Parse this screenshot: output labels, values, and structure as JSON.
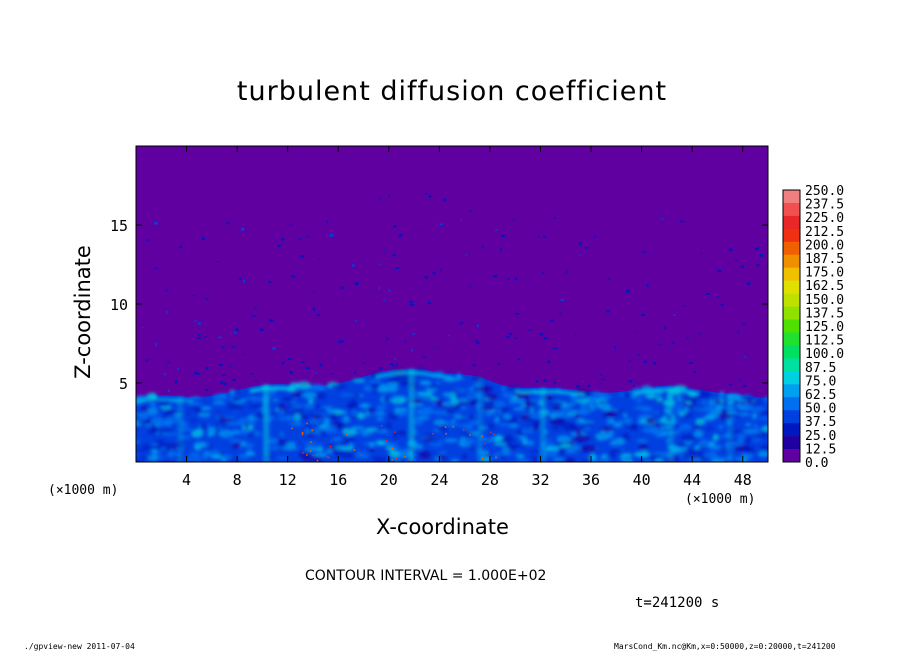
{
  "chart_data": {
    "type": "heatmap",
    "title": "turbulent diffusion coefficient",
    "xlabel": "X-coordinate",
    "ylabel": "Z-coordinate",
    "x_unit_label": "(×1000 m)",
    "x_unit_label_right": "(×1000 m)",
    "xlim": [
      0,
      50
    ],
    "ylim": [
      0,
      20
    ],
    "x_ticks": [
      4,
      8,
      12,
      16,
      20,
      24,
      28,
      32,
      36,
      40,
      44,
      48
    ],
    "y_ticks": [
      5,
      10,
      15
    ],
    "colorbar": {
      "levels": [
        "250.0",
        "237.5",
        "225.0",
        "212.5",
        "200.0",
        "187.5",
        "175.0",
        "162.5",
        "150.0",
        "137.5",
        "125.0",
        "112.5",
        "100.0",
        "87.5",
        "75.0",
        "62.5",
        "50.0",
        "37.5",
        "25.0",
        "12.5",
        "0.0"
      ],
      "colors": [
        "#f08080",
        "#f05050",
        "#e82828",
        "#f03010",
        "#f06000",
        "#f09000",
        "#f0c000",
        "#e0e000",
        "#c0e000",
        "#90e000",
        "#50e000",
        "#20e030",
        "#00e060",
        "#00e0a0",
        "#00d0e0",
        "#00a0f0",
        "#0070f0",
        "#0040e0",
        "#0018c0",
        "#2000a0",
        "#6000a0"
      ]
    },
    "background_value_color": "#6000a0",
    "contour_interval": "CONTOUR INTERVAL = 1.000E+02",
    "time": "t=241200 s",
    "footer_left": "./gpview-new  2011-07-04",
    "footer_right": "MarsCond_Km.nc@Km,x=0:50000,z=0:20000,t=241200"
  }
}
